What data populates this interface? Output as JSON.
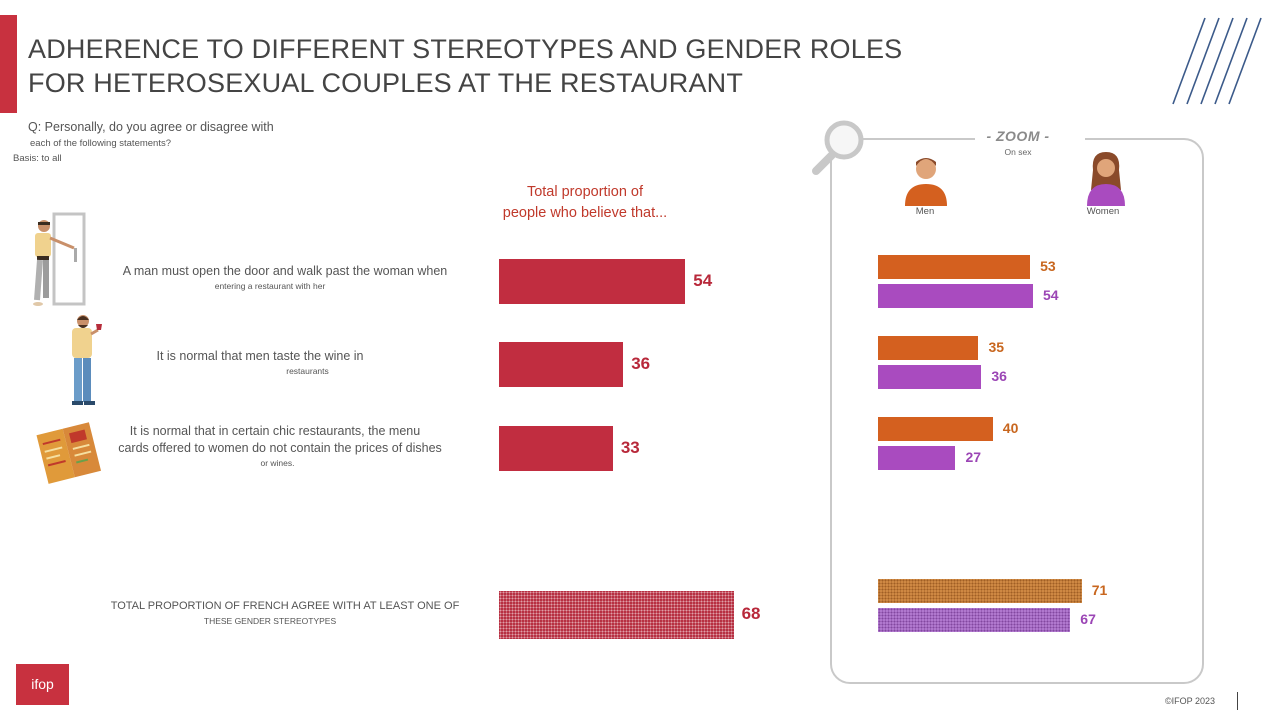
{
  "title_line1": "ADHERENCE TO DIFFERENT STEREOTYPES AND GENDER ROLES",
  "title_line2": "FOR HETEROSEXUAL COUPLES AT THE RESTAURANT",
  "question_line1": "Q: Personally, do you agree or disagree with",
  "question_line2": "each of the following statements?",
  "basis": "Basis: to all",
  "column_header_line1": "Total proportion of",
  "column_header_line2": "people who believe that...",
  "zoom_title": "- ZOOM -",
  "zoom_subtitle": "On sex",
  "legend_men": "Men",
  "legend_women": "Women",
  "statements": [
    {
      "main": "A man must open the door and walk past the woman when",
      "main2": "",
      "sub": "entering a restaurant with her"
    },
    {
      "main": "It is normal that men taste the wine in",
      "main2": "",
      "sub": "restaurants"
    },
    {
      "main": "It is normal that in certain chic restaurants, the menu",
      "main2": "cards offered to women do not contain the prices of dishes",
      "sub": "or wines."
    }
  ],
  "total_line1": "TOTAL PROPORTION OF FRENCH AGREE WITH AT LEAST ONE OF",
  "total_line2": "THESE GENDER STEREOTYPES",
  "copyright": "©IFOP 2023",
  "logo_text": "ifop",
  "colors": {
    "total": "#c12d40",
    "men": "#d4601f",
    "women": "#a94bbf",
    "accent": "#c8313f"
  },
  "chart_data": [
    {
      "type": "bar",
      "title": "Total proportion of people who believe that...",
      "categories": [
        "A man must open the door and walk past the woman when entering a restaurant with her",
        "It is normal that men taste the wine in restaurants",
        "It is normal that in certain chic restaurants, the menu cards offered to women do not contain the prices of dishes or wines.",
        "TOTAL PROPORTION OF FRENCH AGREE WITH AT LEAST ONE OF THESE GENDER STEREOTYPES"
      ],
      "values": [
        54,
        36,
        33,
        68
      ],
      "value_labels": [
        "54",
        "36",
        "33",
        "68"
      ],
      "orientation": "horizontal"
    },
    {
      "type": "bar",
      "title": "- ZOOM - On sex",
      "categories": [
        "A man must open the door and walk past the woman when entering a restaurant with her",
        "It is normal that men taste the wine in restaurants",
        "It is normal that in certain chic restaurants, the menu cards offered to women do not contain the prices of dishes or wines.",
        "TOTAL PROPORTION OF FRENCH AGREE WITH AT LEAST ONE OF THESE GENDER STEREOTYPES"
      ],
      "series": [
        {
          "name": "Men",
          "values": [
            53,
            35,
            40,
            71
          ],
          "value_labels": [
            "53",
            "35",
            "40",
            "71"
          ]
        },
        {
          "name": "Women",
          "values": [
            54,
            36,
            27,
            67
          ],
          "value_labels": [
            "54",
            "36",
            "27",
            "67"
          ]
        }
      ],
      "orientation": "horizontal"
    }
  ]
}
